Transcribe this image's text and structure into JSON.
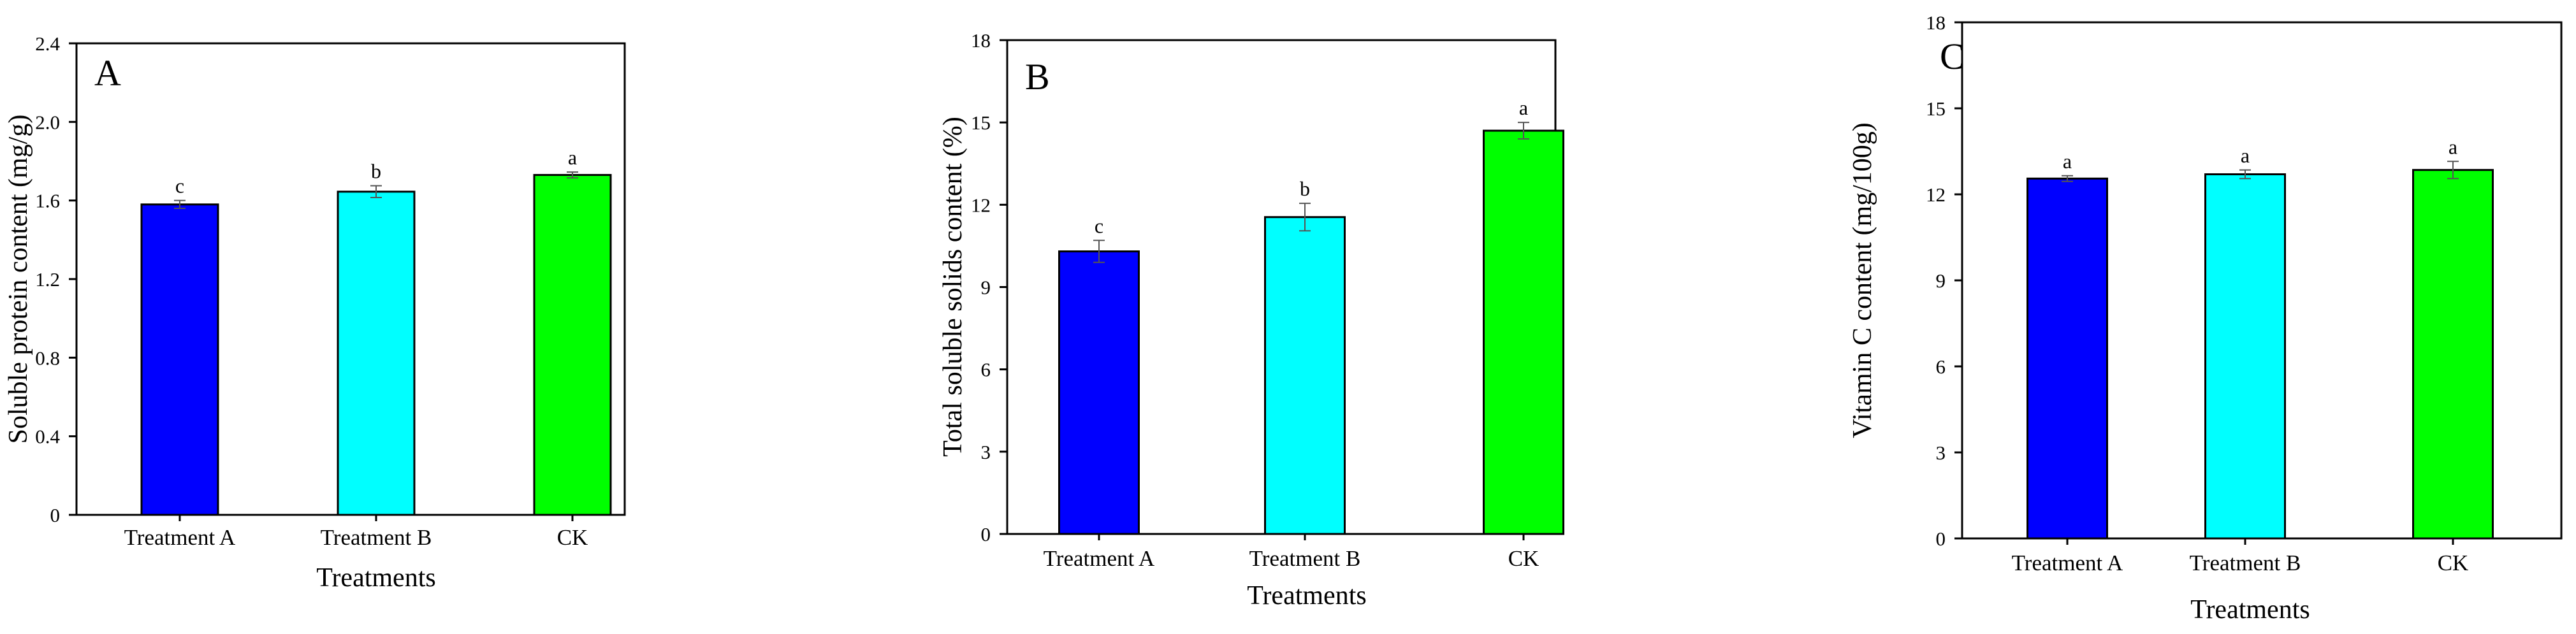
{
  "chart_data": [
    {
      "type": "bar",
      "panel_label": "A",
      "categories": [
        "Treatment A",
        "Treatment B",
        "CK"
      ],
      "values": [
        1.58,
        1.645,
        1.73
      ],
      "errors": [
        0.02,
        0.03,
        0.015
      ],
      "letters": [
        "c",
        "b",
        "a"
      ],
      "colors": [
        "#0000ff",
        "#00ffff",
        "#00ff00"
      ],
      "xlabel": "Treatments",
      "ylabel": "Soluble protein content (mg/g)",
      "ylim": [
        0,
        2.4
      ],
      "yticks": [
        "0",
        "0.4",
        "0.8",
        "1.2",
        "1.6",
        "2.0",
        "2.4"
      ]
    },
    {
      "type": "bar",
      "panel_label": "B",
      "categories": [
        "Treatment  A",
        "Treatment B",
        "CK"
      ],
      "values": [
        10.3,
        11.55,
        14.7
      ],
      "errors": [
        0.4,
        0.5,
        0.3
      ],
      "letters": [
        "c",
        "b",
        "a"
      ],
      "colors": [
        "#0000ff",
        "#00ffff",
        "#00ff00"
      ],
      "xlabel": "Treatments",
      "ylabel": "Total soluble solids content (%)",
      "ylim": [
        0,
        18
      ],
      "yticks": [
        "0",
        "3",
        "6",
        "9",
        "12",
        "15",
        "18"
      ]
    },
    {
      "type": "bar",
      "panel_label": "C",
      "categories": [
        "Treatment A",
        "Treatment B",
        "CK"
      ],
      "values": [
        12.55,
        12.7,
        12.85
      ],
      "errors": [
        0.1,
        0.15,
        0.3
      ],
      "letters": [
        "a",
        "a",
        "a"
      ],
      "colors": [
        "#0000ff",
        "#00ffff",
        "#00ff00"
      ],
      "xlabel": "Treatments",
      "ylabel": "Vitamin C content (mg/100g)",
      "ylim": [
        0,
        18
      ],
      "yticks": [
        "0",
        "3",
        "6",
        "9",
        "12",
        "15",
        "18"
      ]
    }
  ]
}
